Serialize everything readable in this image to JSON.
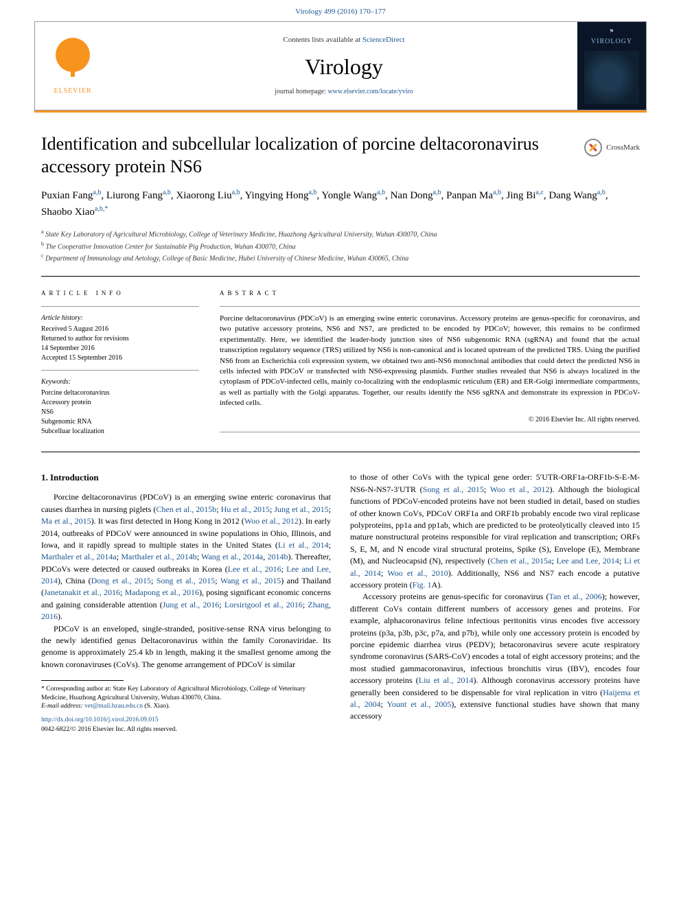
{
  "top": {
    "citation_text": "Virology 499 (2016) 170–177",
    "citation_href": "#"
  },
  "header": {
    "elsevier_label": "ELSEVIER",
    "contents_pre": "Contents lists available at ",
    "contents_link": "ScienceDirect",
    "journal": "Virology",
    "homepage_pre": "journal homepage: ",
    "homepage_link": "www.elsevier.com/locate/yviro",
    "cover_flag": "⚑",
    "cover_title": "VIROLOGY"
  },
  "crossmark": {
    "label": "CrossMark"
  },
  "title": "Identification and subcellular localization of porcine deltacoronavirus accessory protein NS6",
  "authors": [
    {
      "name": "Puxian Fang",
      "aff": "a,b"
    },
    {
      "name": "Liurong Fang",
      "aff": "a,b"
    },
    {
      "name": "Xiaorong Liu",
      "aff": "a,b"
    },
    {
      "name": "Yingying Hong",
      "aff": "a,b"
    },
    {
      "name": "Yongle Wang",
      "aff": "a,b"
    },
    {
      "name": "Nan Dong",
      "aff": "a,b"
    },
    {
      "name": "Panpan Ma",
      "aff": "a,b"
    },
    {
      "name": "Jing Bi",
      "aff": "a,c"
    },
    {
      "name": "Dang Wang",
      "aff": "a,b"
    },
    {
      "name": "Shaobo Xiao",
      "aff": "a,b,*"
    }
  ],
  "affiliations": [
    {
      "sup": "a",
      "text": "State Key Laboratory of Agricultural Microbiology, College of Veterinary Medicine, Huazhong Agricultural University, Wuhan 430070, China"
    },
    {
      "sup": "b",
      "text": "The Cooperative Innovation Center for Sustainable Pig Production, Wuhan 430070, China"
    },
    {
      "sup": "c",
      "text": "Department of Immunology and Aetology, College of Basic Medicine, Hubei University of Chinese Medicine, Wuhan 430065, China"
    }
  ],
  "article_info": {
    "heading": "ARTICLE INFO",
    "history_label": "Article history:",
    "history": [
      "Received 5 August 2016",
      "Returned to author for revisions",
      "14 September 2016",
      "Accepted 15 September 2016"
    ],
    "keywords_label": "Keywords:",
    "keywords": [
      "Porcine deltacoronavirus",
      "Accessory protein",
      "NS6",
      "Subgenomic RNA",
      "Subcelluar localization"
    ]
  },
  "abstract": {
    "heading": "ABSTRACT",
    "text": "Porcine deltacoronavirus (PDCoV) is an emerging swine enteric coronavirus. Accessory proteins are genus-specific for coronavirus, and two putative accessory proteins, NS6 and NS7, are predicted to be encoded by PDCoV; however, this remains to be confirmed experimentally. Here, we identified the leader-body junction sites of NS6 subgenomic RNA (sgRNA) and found that the actual transcription regulatory sequence (TRS) utilized by NS6 is non-canonical and is located upstream of the predicted TRS. Using the purified NS6 from an Escherichia coli expression system, we obtained two anti-NS6 monoclonal antibodies that could detect the predicted NS6 in cells infected with PDCoV or transfected with NS6-expressing plasmids. Further studies revealed that NS6 is always localized in the cytoplasm of PDCoV-infected cells, mainly co-localizing with the endoplasmic reticulum (ER) and ER-Golgi intermediate compartments, as well as partially with the Golgi apparatus. Together, our results identify the NS6 sgRNA and demonstrate its expression in PDCoV-infected cells.",
    "copyright": "© 2016 Elsevier Inc. All rights reserved."
  },
  "body": {
    "section1_heading": "1.  Introduction",
    "p1a": "Porcine deltacoronavirus (PDCoV) is an emerging swine enteric coronavirus that causes diarrhea in nursing piglets (",
    "c1": "Chen et al., 2015b",
    "p1b": "; ",
    "c2": "Hu et al., 2015",
    "p1c": "; ",
    "c3": "Jung et al., 2015",
    "p1d": "; ",
    "c4": "Ma et al., 2015",
    "p1e": "). It was first detected in Hong Kong in 2012 (",
    "c5": "Woo et al., 2012",
    "p1f": "). In early 2014, outbreaks of PDCoV were announced in swine populations in Ohio, Illinois, and Iowa, and it rapidly spread to multiple states in the United States (",
    "c6": "Li et al., 2014",
    "p1g": "; ",
    "c7": "Marthaler et al., 2014a",
    "p1h": "; ",
    "c8": "Marthaler et al., 2014b",
    "p1i": "; ",
    "c9": "Wang et al., 2014a",
    "p1j": ", ",
    "c10": "2014b",
    "p1k": "). Thereafter, PDCoVs were detected or caused outbreaks in Korea (",
    "c11": "Lee et al., 2016",
    "p1l": "; ",
    "c12": "Lee and Lee, 2014",
    "p1m": "), China (",
    "c13": "Dong et al., 2015",
    "p1n": "; ",
    "c14": "Song et al., 2015",
    "p1o": "; ",
    "c15": "Wang et al., 2015",
    "p1p": ") and Thailand (",
    "c16": "Janetanakit et al., 2016",
    "p1q": "; ",
    "c17": "Madapong et al., 2016",
    "p1r": "), posing significant economic concerns and gaining considerable attention (",
    "c18": "Jung et al., 2016",
    "p1s": "; ",
    "c19": "Lorsirigool et al., 2016",
    "p1t": "; ",
    "c20": "Zhang, 2016",
    "p1u": ").",
    "p2": "PDCoV is an enveloped, single-stranded, positive-sense RNA virus belonging to the newly identified genus Deltacoronavirus within the family Coronaviridae. Its genome is approximately 25.4 kb in length, making it the smallest genome among the known coronaviruses (CoVs). The genome arrangement of PDCoV is similar",
    "p3a": "to those of other CoVs with the typical gene order: 5′UTR-ORF1a-ORF1b-S-E-M-NS6-N-NS7-3′UTR (",
    "c21": "Song et al., 2015",
    "p3b": "; ",
    "c22": "Woo et al., 2012",
    "p3c": "). Although the biological functions of PDCoV-encoded proteins have not been studied in detail, based on studies of other known CoVs, PDCoV ORF1a and ORF1b probably encode two viral replicase polyproteins, pp1a and pp1ab, which are predicted to be proteolytically cleaved into 15 mature nonstructural proteins responsible for viral replication and transcription; ORFs S, E, M, and N encode viral structural proteins, Spike (S), Envelope (E), Membrane (M), and Nucleocapsid (N), respectively (",
    "c23": "Chen et al., 2015a",
    "p3d": "; ",
    "c24": "Lee and Lee, 2014",
    "p3e": "; ",
    "c25": "Li et al., 2014",
    "p3f": "; ",
    "c26": "Woo et al., 2010",
    "p3g": "). Additionally, NS6 and NS7 each encode a putative accessory protein (",
    "c27": "Fig. 1",
    "p3h": "A).",
    "p4a": "Accessory proteins are genus-specific for coronavirus (",
    "c28": "Tan et al., 2006",
    "p4b": "); however, different CoVs contain different numbers of accessory genes and proteins. For example, alphacoronavirus feline infectious peritonitis virus encodes five accessory proteins (p3a, p3b, p3c, p7a, and p7b), while only one accessory protein is encoded by porcine epidemic diarrhea virus (PEDV); betacoronavirus severe acute respiratory syndrome coronavirus (SARS-CoV) encodes a total of eight accessory proteins; and the most studied gammacoronavirus, infectious bronchitis virus (IBV), encodes four accessory proteins (",
    "c29": "Liu et al., 2014",
    "p4c": "). Although coronavirus accessory proteins have generally been considered to be dispensable for viral replication in vitro (",
    "c30": "Haijema et al., 2004",
    "p4d": "; ",
    "c31": "Yount et al., 2005",
    "p4e": "), extensive functional studies have shown that many accessory"
  },
  "footnotes": {
    "corr": "* Corresponding author at: State Key Laboratory of Agricultural Microbiology, College of Veterinary Medicine, Huazhong Agricultural University, Wuhan 430070, China.",
    "email_label": "E-mail address: ",
    "email": "vet@mail.hzau.edu.cn",
    "email_suffix": " (S. Xiao).",
    "doi": "http://dx.doi.org/10.1016/j.virol.2016.09.015",
    "issn_copyright": "0042-6822/© 2016 Elsevier Inc. All rights reserved."
  },
  "colors": {
    "link": "#1a5490",
    "accent": "#f7941e",
    "cover_bg": "#0a1628"
  }
}
